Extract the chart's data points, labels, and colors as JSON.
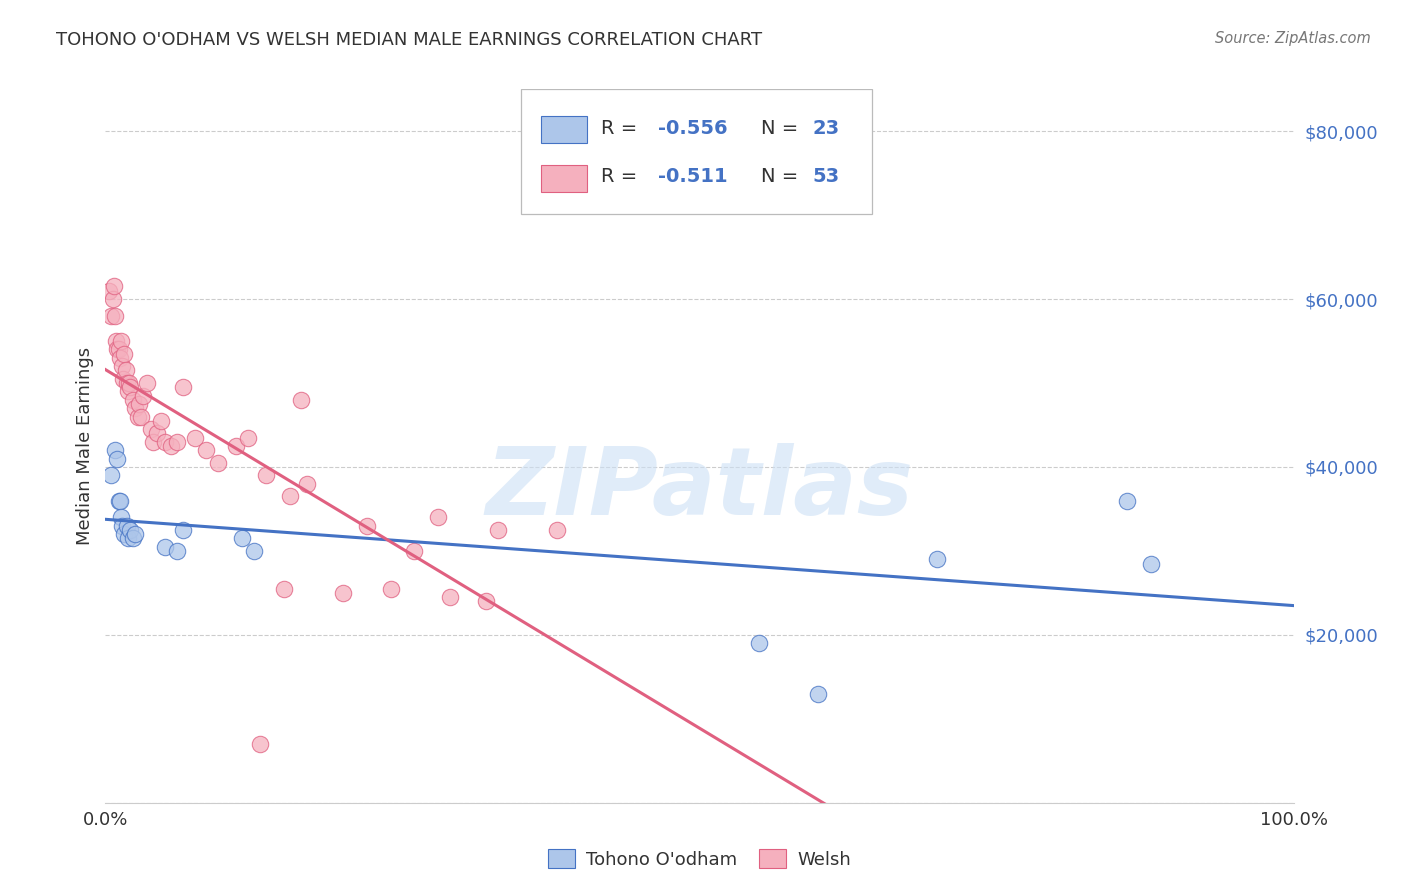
{
  "title": "TOHONO O'ODHAM VS WELSH MEDIAN MALE EARNINGS CORRELATION CHART",
  "source": "Source: ZipAtlas.com",
  "ylabel": "Median Male Earnings",
  "yticks": [
    0,
    20000,
    40000,
    60000,
    80000
  ],
  "xlim": [
    0.0,
    1.0
  ],
  "ylim": [
    0,
    85000
  ],
  "legend_label_blue": "Tohono O'odham",
  "legend_label_pink": "Welsh",
  "r_blue": "-0.556",
  "r_pink": "-0.511",
  "n_blue": "23",
  "n_pink": "53",
  "blue_fill": "#adc6ea",
  "pink_fill": "#f5b0be",
  "blue_edge": "#4472c4",
  "pink_edge": "#e06080",
  "blue_line": "#4472c4",
  "pink_line": "#e06080",
  "label_color": "#4472c4",
  "text_color": "#333333",
  "grid_color": "#cccccc",
  "watermark": "ZIPatlas",
  "tohono_x": [
    0.005,
    0.008,
    0.01,
    0.011,
    0.012,
    0.013,
    0.014,
    0.016,
    0.018,
    0.019,
    0.021,
    0.023,
    0.025,
    0.05,
    0.06,
    0.065,
    0.115,
    0.125,
    0.55,
    0.6,
    0.7,
    0.86,
    0.88
  ],
  "tohono_y": [
    39000,
    42000,
    41000,
    36000,
    36000,
    34000,
    33000,
    32000,
    33000,
    31500,
    32500,
    31500,
    32000,
    30500,
    30000,
    32500,
    31500,
    30000,
    19000,
    13000,
    29000,
    36000,
    28500
  ],
  "welsh_x": [
    0.003,
    0.005,
    0.006,
    0.007,
    0.008,
    0.009,
    0.01,
    0.011,
    0.012,
    0.013,
    0.014,
    0.015,
    0.016,
    0.017,
    0.018,
    0.019,
    0.02,
    0.021,
    0.023,
    0.025,
    0.027,
    0.028,
    0.03,
    0.032,
    0.035,
    0.038,
    0.04,
    0.043,
    0.047,
    0.05,
    0.055,
    0.06,
    0.065,
    0.075,
    0.085,
    0.095,
    0.11,
    0.12,
    0.135,
    0.155,
    0.17,
    0.2,
    0.24,
    0.28,
    0.33,
    0.38,
    0.22,
    0.165,
    0.26,
    0.32,
    0.29,
    0.15,
    0.13
  ],
  "welsh_y": [
    61000,
    58000,
    60000,
    61500,
    58000,
    55000,
    54000,
    54000,
    53000,
    55000,
    52000,
    50500,
    53500,
    51500,
    50000,
    49000,
    50000,
    49500,
    48000,
    47000,
    46000,
    47500,
    46000,
    48500,
    50000,
    44500,
    43000,
    44000,
    45500,
    43000,
    42500,
    43000,
    49500,
    43500,
    42000,
    40500,
    42500,
    43500,
    39000,
    36500,
    38000,
    25000,
    25500,
    34000,
    32500,
    32500,
    33000,
    48000,
    30000,
    24000,
    24500,
    25500,
    7000
  ]
}
